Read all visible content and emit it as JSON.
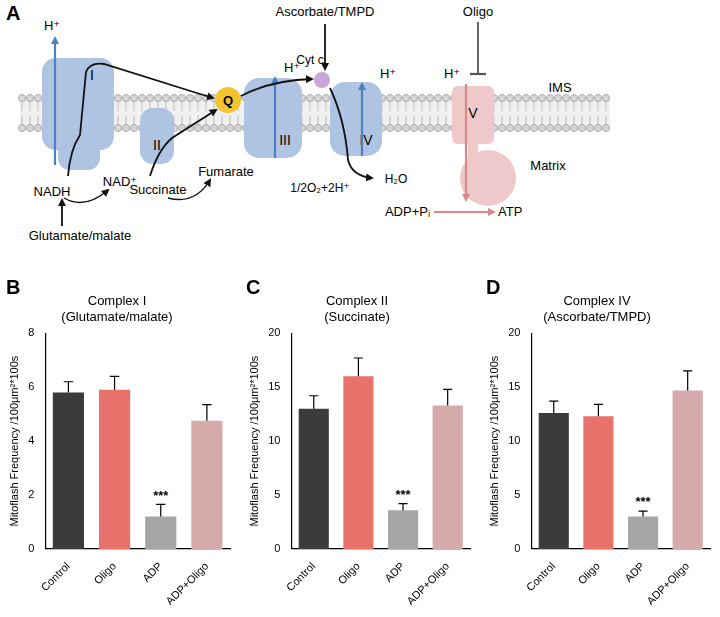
{
  "panel_labels": [
    "A",
    "B",
    "C",
    "D"
  ],
  "diagram": {
    "complexes": [
      "I",
      "II",
      "III",
      "IV",
      "V"
    ],
    "quinone": "Q",
    "cytochrome": "Cyt c",
    "protons": [
      "H⁺",
      "H⁺",
      "H⁺",
      "H⁺"
    ],
    "compartments": [
      "IMS",
      "Matrix"
    ],
    "inhibitor": "Oligo",
    "donors": [
      "Glutamate/malate",
      "Ascorbate/TMPD"
    ],
    "reactions": {
      "complex_I": [
        "NADH",
        "NAD⁺"
      ],
      "complex_II": [
        "Succinate",
        "Fumarate"
      ],
      "complex_IV": [
        "1/2O₂+2H⁺",
        "H₂O"
      ],
      "complex_V": [
        "ADP+Pᵢ",
        "ATP"
      ]
    }
  },
  "chart_data": [
    {
      "type": "bar",
      "title": "Complex I",
      "subtitle": "(Glutamate/malate)",
      "y_label": "Mitoflash Frequency /100μm²*100s",
      "categories": [
        "Control",
        "Oligo",
        "ADP",
        "ADP+Oligo"
      ],
      "values": [
        5.8,
        5.9,
        1.2,
        4.75
      ],
      "errors": [
        0.4,
        0.5,
        0.45,
        0.6
      ],
      "colors": [
        "#3b3b3b",
        "#e9716c",
        "#a6a6a6",
        "#d6a9ab"
      ],
      "ylim": [
        0,
        8
      ],
      "yticks": [
        0,
        2,
        4,
        6,
        8
      ],
      "grid": false,
      "annotations": [
        {
          "category": "ADP",
          "text": "***"
        }
      ]
    },
    {
      "type": "bar",
      "title": "Complex II",
      "subtitle": "(Succinate)",
      "y_label": "Mitoflash Frequency /100μm²*100s",
      "categories": [
        "Control",
        "Oligo",
        "ADP",
        "ADP+Oligo"
      ],
      "values": [
        13,
        16,
        3.6,
        13.3
      ],
      "errors": [
        1.2,
        1.7,
        0.6,
        1.5
      ],
      "colors": [
        "#3b3b3b",
        "#e9716c",
        "#a6a6a6",
        "#d6a9ab"
      ],
      "ylim": [
        0,
        20
      ],
      "yticks": [
        0,
        5,
        10,
        15,
        20
      ],
      "grid": false,
      "annotations": [
        {
          "category": "ADP",
          "text": "***"
        }
      ]
    },
    {
      "type": "bar",
      "title": "Complex IV",
      "subtitle": "(Ascorbate/TMPD)",
      "y_label": "Mitoflash Frequency /100μm²*100s",
      "categories": [
        "Control",
        "Oligo",
        "ADP",
        "ADP+Oligo"
      ],
      "values": [
        12.6,
        12.3,
        3.0,
        14.7
      ],
      "errors": [
        1.1,
        1.1,
        0.5,
        1.8
      ],
      "colors": [
        "#3b3b3b",
        "#e9716c",
        "#a6a6a6",
        "#d6a9ab"
      ],
      "ylim": [
        0,
        20
      ],
      "yticks": [
        0,
        5,
        10,
        15,
        20
      ],
      "grid": false,
      "annotations": [
        {
          "category": "ADP",
          "text": "***"
        }
      ]
    }
  ]
}
